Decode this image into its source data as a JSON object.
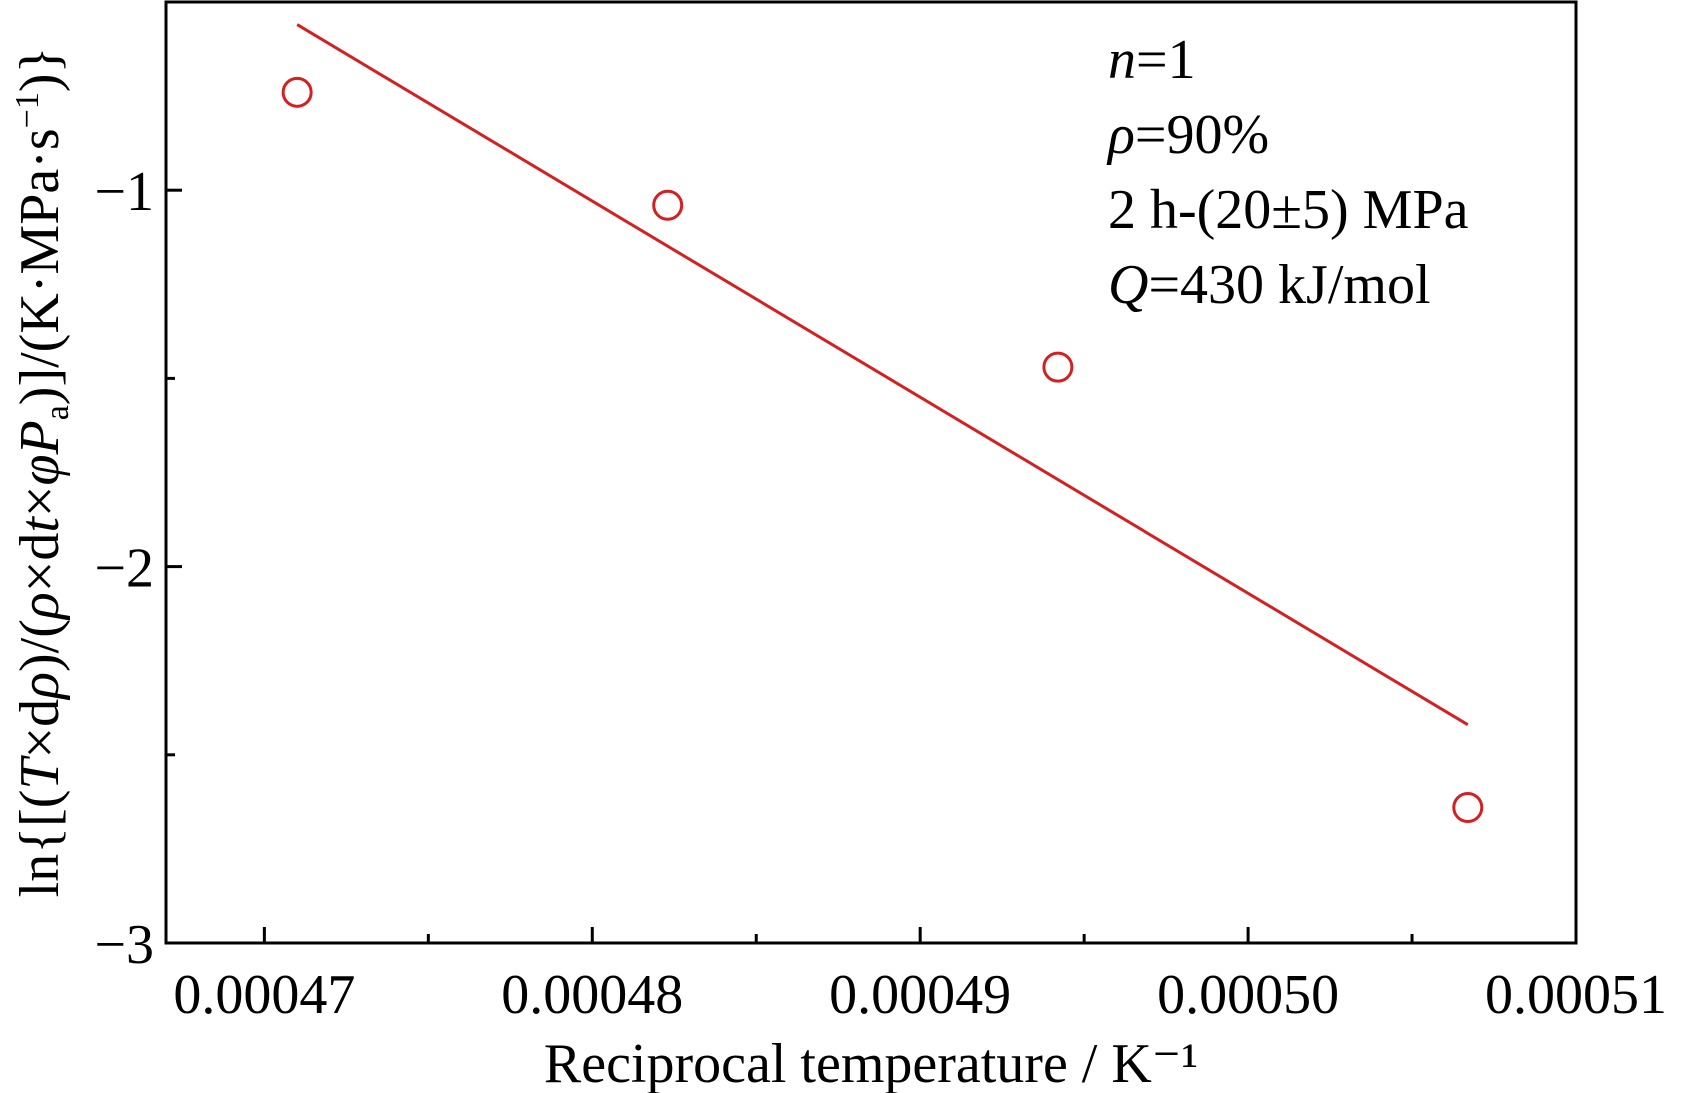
{
  "chart_data": {
    "type": "scatter",
    "xlabel": "Reciprocal temperature / K⁻¹",
    "ylabel_parts": {
      "prefix": "ln{[(",
      "T": "T",
      "mid1": "×d",
      "rho1": "ρ",
      "mid2": ")/(",
      "rho2": "ρ",
      "mid3": "×d",
      "t": "t",
      "mid4": "×",
      "phi": "φ",
      "P": "P",
      "sub_a": "a",
      "mid5": ")]/(K·MPa·s",
      "sup": "−1",
      "suffix": ")}"
    },
    "xlim": [
      0.000467,
      0.00051
    ],
    "ylim": [
      -3,
      -0.5
    ],
    "xticks": [
      0.00047,
      0.00048,
      0.00049,
      0.0005,
      0.00051
    ],
    "xtick_labels": [
      "0.00047",
      "0.00048",
      "0.00049",
      "0.00050",
      "0.00051"
    ],
    "x_minor_ticks": [
      0.000475,
      0.000485,
      0.000495,
      0.000505
    ],
    "yticks": [
      -1,
      -2,
      -3
    ],
    "ytick_labels": [
      "−1",
      "−2",
      "−3"
    ],
    "y_minor_ticks": [
      -1.5,
      -2.5
    ],
    "grid": false,
    "series": [
      {
        "marker": "open-circle",
        "color": "#d42020",
        "x": [
          0.000471,
          0.0004823,
          0.0004942,
          0.0005067
        ],
        "y": [
          -0.74,
          -1.04,
          -1.47,
          -2.64
        ]
      }
    ],
    "fit_line": {
      "color": "#d42020",
      "x": [
        0.000471,
        0.0005067
      ],
      "y": [
        -0.56,
        -2.42
      ]
    },
    "annotations": {
      "n_var": "n",
      "n_val": "=1",
      "rho_var": "ρ",
      "rho_val": "=90%",
      "condition": "2 h-(20±5) MPa",
      "Q_var": "Q",
      "Q_val": "=430 kJ/mol"
    }
  }
}
